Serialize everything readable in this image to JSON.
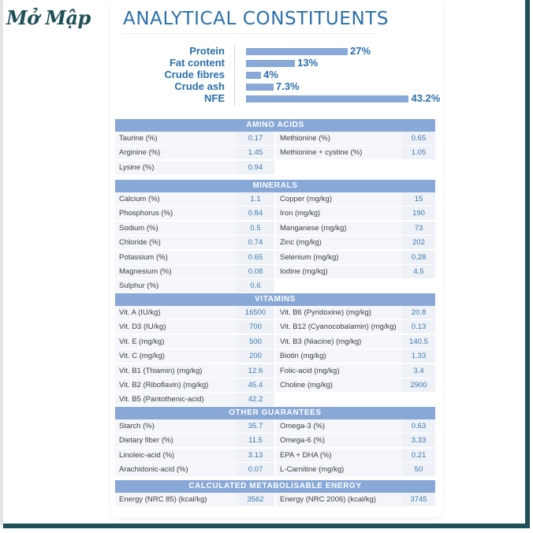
{
  "logo": "Mở Mập",
  "title": "ANALYTICAL CONSTITUENTS",
  "chart_data": {
    "type": "bar",
    "orientation": "horizontal",
    "categories": [
      "Protein",
      "Fat content",
      "Crude fibres",
      "Crude ash",
      "NFE"
    ],
    "values": [
      27,
      13,
      4,
      7.3,
      43.2
    ],
    "labels": [
      "27%",
      "13%",
      "4%",
      "7.3%",
      "43.2%"
    ],
    "unit": "%"
  },
  "sections": [
    {
      "title": "AMINO ACIDS",
      "rows": [
        [
          "Taurine (%)",
          "0.17",
          "Methionine (%)",
          "0.65"
        ],
        [
          "Arginine (%)",
          "1.45",
          "Methionine + cystine (%)",
          "1.05"
        ],
        [
          "Lysine (%)",
          "0.94",
          "",
          ""
        ]
      ]
    },
    {
      "title": "MINERALS",
      "rows": [
        [
          "Calcium (%)",
          "1.1",
          "Copper (mg/kg)",
          "15"
        ],
        [
          "Phosphorus (%)",
          "0.84",
          "Iron (mg/kg)",
          "190"
        ],
        [
          "Sodium (%)",
          "0.5",
          "Manganese (mg/kg)",
          "73"
        ],
        [
          "Chloride (%)",
          "0.74",
          "Zinc (mg/kg)",
          "202"
        ],
        [
          "Potassium (%)",
          "0.65",
          "Selenium (mg/kg)",
          "0.28"
        ],
        [
          "Magnesium (%)",
          "0.08",
          "Iodine (mg/kg)",
          "4.5"
        ],
        [
          "Sulphur (%)",
          "0.6",
          "",
          ""
        ]
      ]
    },
    {
      "title": "VITAMINS",
      "rows": [
        [
          "Vit. A (IU/kg)",
          "16500",
          "Vit. B6 (Pyridoxine) (mg/kg)",
          "20.8"
        ],
        [
          "Vit. D3 (IU/kg)",
          "700",
          "Vit. B12 (Cyanocobalamin) (mg/kg)",
          "0.13"
        ],
        [
          "Vit. E (mg/kg)",
          "500",
          "Vit. B3 (Niacine) (mg/kg)",
          "140.5"
        ],
        [
          "Vit. C (mg/kg)",
          "200",
          "Biotin (mg/kg)",
          "1.33"
        ],
        [
          "Vit. B1 (Thiamin) (mg/kg)",
          "12.6",
          "Folic-acid (mg/kg)",
          "3.4"
        ],
        [
          "Vit. B2 (Riboflavin) (mg/kg)",
          "45.4",
          "Choline (mg/kg)",
          "2900"
        ],
        [
          "Vit.  B5 (Pantothenic-acid)",
          "42.2",
          "",
          ""
        ]
      ]
    },
    {
      "title": "OTHER GUARANTEES",
      "rows": [
        [
          "Starch (%)",
          "35.7",
          "Omega-3 (%)",
          "0.63"
        ],
        [
          "Dietary fiber (%)",
          "11.5",
          "Omega-6 (%)",
          "3.33"
        ],
        [
          "Linoleic-acid (%)",
          "3.13",
          "EPA + DHA (%)",
          "0.21"
        ],
        [
          "Arachidonic-acid (%)",
          "0.07",
          "L-Carnitine (mg/kg)",
          "50"
        ]
      ]
    },
    {
      "title": "CALCULATED METABOLISABLE ENERGY",
      "rows": [
        [
          "Energy (NRC 85) (kcal/kg)",
          "3562",
          "Energy (NRC 2006) (kcal/kg)",
          "3745"
        ]
      ]
    }
  ]
}
